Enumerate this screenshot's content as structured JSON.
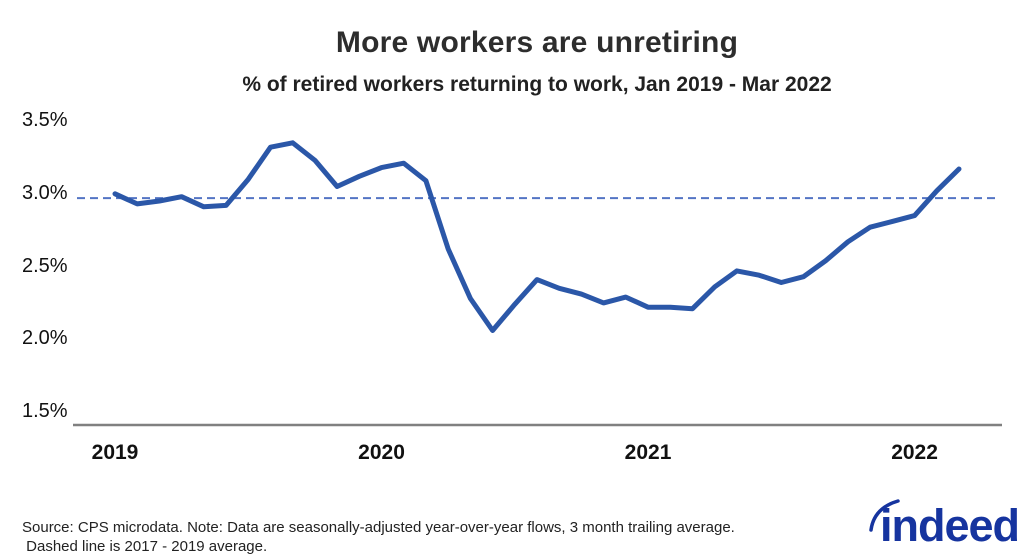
{
  "header": {
    "title": "More workers are unretiring",
    "subtitle": "% of retired workers returning to work, Jan 2019 - Mar 2022"
  },
  "footer": {
    "line1": "Source: CPS microdata. Note: Data are seasonally-adjusted year-over-year flows, 3 month trailing average.",
    "line2": " Dashed line is 2017 - 2019 average."
  },
  "logo": {
    "text": "indeed",
    "color": "#16349f"
  },
  "colors": {
    "line": "#2b57a8",
    "dashed_reference": "#5374c4",
    "axis": "#808080",
    "text": "#2d2d2d"
  },
  "chart_data": {
    "type": "line",
    "title": "More workers are unretiring",
    "subtitle": "% of retired workers returning to work, Jan 2019 - Mar 2022",
    "x": [
      "Jan 2019",
      "Feb 2019",
      "Mar 2019",
      "Apr 2019",
      "May 2019",
      "Jun 2019",
      "Jul 2019",
      "Aug 2019",
      "Sep 2019",
      "Oct 2019",
      "Nov 2019",
      "Dec 2019",
      "Jan 2020",
      "Feb 2020",
      "Mar 2020",
      "Apr 2020",
      "May 2020",
      "Jun 2020",
      "Jul 2020",
      "Aug 2020",
      "Sep 2020",
      "Oct 2020",
      "Nov 2020",
      "Dec 2020",
      "Jan 2021",
      "Feb 2021",
      "Mar 2021",
      "Apr 2021",
      "May 2021",
      "Jun 2021",
      "Jul 2021",
      "Aug 2021",
      "Sep 2021",
      "Oct 2021",
      "Nov 2021",
      "Dec 2021",
      "Jan 2022",
      "Feb 2022",
      "Mar 2022"
    ],
    "values": [
      3.0,
      2.93,
      2.95,
      2.98,
      2.91,
      2.92,
      3.1,
      3.32,
      3.35,
      3.23,
      3.05,
      3.12,
      3.18,
      3.21,
      3.09,
      2.62,
      2.28,
      2.06,
      2.24,
      2.41,
      2.35,
      2.31,
      2.25,
      2.29,
      2.22,
      2.22,
      2.21,
      2.36,
      2.47,
      2.44,
      2.39,
      2.43,
      2.54,
      2.67,
      2.77,
      2.81,
      2.85,
      3.02,
      3.17
    ],
    "unit": "%",
    "reference_line": {
      "value": 2.97,
      "style": "dashed",
      "label": "2017 - 2019 average"
    },
    "y_axis": {
      "ticks": [
        {
          "label": "3.5%",
          "value": 3.5
        },
        {
          "label": "3.0%",
          "value": 3.0
        },
        {
          "label": "2.5%",
          "value": 2.5
        },
        {
          "label": "2.0%",
          "value": 2.0
        },
        {
          "label": "1.5%",
          "value": 1.5
        }
      ],
      "range": [
        1.5,
        3.5
      ],
      "grid": false
    },
    "x_axis": {
      "ticks": [
        {
          "label": "2019",
          "month_index": 0
        },
        {
          "label": "2020",
          "month_index": 12
        },
        {
          "label": "2021",
          "month_index": 24
        },
        {
          "label": "2022",
          "month_index": 36
        }
      ]
    },
    "legend": null
  }
}
